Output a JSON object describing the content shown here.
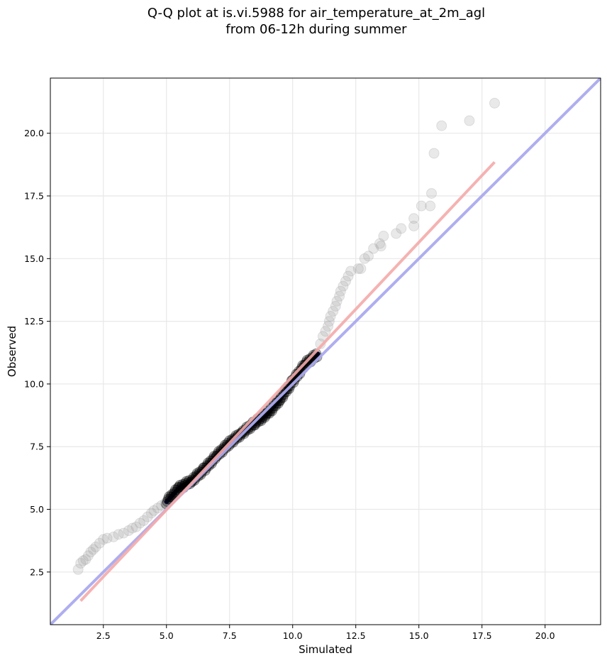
{
  "chart_data": {
    "type": "scatter",
    "title": "Q-Q plot at is.vi.5988 for air_temperature_at_2m_agl",
    "subtitle": "from 06-12h during summer",
    "xlabel": "Simulated",
    "ylabel": "Observed",
    "xlim": [
      0.4,
      22.2
    ],
    "ylim": [
      0.4,
      22.2
    ],
    "xticks": [
      2.5,
      5.0,
      7.5,
      10.0,
      12.5,
      15.0,
      17.5,
      20.0
    ],
    "yticks": [
      2.5,
      5.0,
      7.5,
      10.0,
      12.5,
      15.0,
      17.5,
      20.0
    ],
    "xtick_labels": [
      "2.5",
      "5.0",
      "7.5",
      "10.0",
      "12.5",
      "15.0",
      "17.5",
      "20.0"
    ],
    "ytick_labels": [
      "2.5",
      "5.0",
      "7.5",
      "10.0",
      "12.5",
      "15.0",
      "17.5",
      "20.0"
    ],
    "grid": true,
    "reference_line": {
      "color": "#aaaaee",
      "x": [
        0.4,
        22.2
      ],
      "y": [
        0.4,
        22.2
      ]
    },
    "fit_line": {
      "color": "#f4aaaa",
      "x": [
        1.6,
        18.0
      ],
      "y": [
        1.35,
        18.85
      ]
    },
    "colors": {
      "dense_points": "#000000",
      "sparse_points": "#999999",
      "dense_band": "#10006a"
    },
    "points_high": [
      [
        18.0,
        21.2
      ],
      [
        17.0,
        20.5
      ],
      [
        15.9,
        20.3
      ],
      [
        15.6,
        19.2
      ],
      [
        15.5,
        17.6
      ],
      [
        15.1,
        17.1
      ],
      [
        15.45,
        17.1
      ],
      [
        14.8,
        16.6
      ],
      [
        14.8,
        16.3
      ],
      [
        14.3,
        16.2
      ],
      [
        14.1,
        16.0
      ],
      [
        13.6,
        15.9
      ],
      [
        13.45,
        15.6
      ],
      [
        13.5,
        15.5
      ],
      [
        13.2,
        15.4
      ],
      [
        13.0,
        15.1
      ],
      [
        12.85,
        15.0
      ],
      [
        12.7,
        14.6
      ],
      [
        12.6,
        14.6
      ],
      [
        12.3,
        14.5
      ],
      [
        12.2,
        14.3
      ],
      [
        12.1,
        14.1
      ],
      [
        12.0,
        13.9
      ],
      [
        11.9,
        13.7
      ],
      [
        11.85,
        13.5
      ],
      [
        11.75,
        13.3
      ],
      [
        11.7,
        13.1
      ],
      [
        11.6,
        12.9
      ],
      [
        11.5,
        12.7
      ],
      [
        11.45,
        12.5
      ],
      [
        11.4,
        12.3
      ],
      [
        11.3,
        12.1
      ],
      [
        11.2,
        11.9
      ],
      [
        11.1,
        11.6
      ]
    ],
    "points_low": [
      [
        1.5,
        2.6
      ],
      [
        1.6,
        2.85
      ],
      [
        1.7,
        2.95
      ],
      [
        1.8,
        3.0
      ],
      [
        1.9,
        3.15
      ],
      [
        2.0,
        3.3
      ],
      [
        2.1,
        3.4
      ],
      [
        2.2,
        3.5
      ],
      [
        2.35,
        3.65
      ],
      [
        2.5,
        3.8
      ],
      [
        2.65,
        3.85
      ],
      [
        2.9,
        3.9
      ],
      [
        3.1,
        4.0
      ],
      [
        3.3,
        4.05
      ],
      [
        3.5,
        4.15
      ],
      [
        3.65,
        4.25
      ],
      [
        3.8,
        4.3
      ],
      [
        3.95,
        4.45
      ],
      [
        4.1,
        4.55
      ],
      [
        4.25,
        4.7
      ],
      [
        4.4,
        4.85
      ],
      [
        4.5,
        4.95
      ],
      [
        4.65,
        5.05
      ],
      [
        4.8,
        5.15
      ],
      [
        4.95,
        5.25
      ]
    ],
    "dense_path": [
      [
        5.0,
        5.3
      ],
      [
        5.5,
        5.85
      ],
      [
        6.0,
        6.15
      ],
      [
        6.5,
        6.6
      ],
      [
        7.0,
        7.15
      ],
      [
        7.5,
        7.65
      ],
      [
        8.0,
        8.05
      ],
      [
        8.5,
        8.45
      ],
      [
        9.0,
        8.8
      ],
      [
        9.5,
        9.4
      ],
      [
        10.0,
        10.1
      ],
      [
        10.5,
        10.8
      ],
      [
        11.0,
        11.2
      ]
    ]
  }
}
